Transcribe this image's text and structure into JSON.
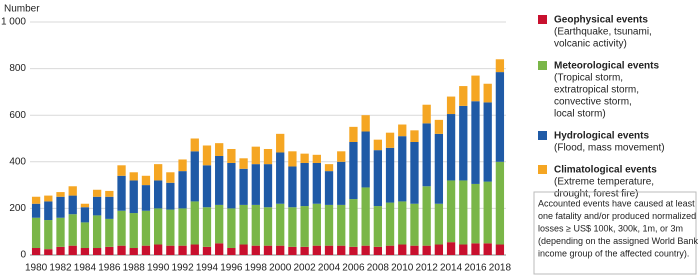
{
  "chart_data": {
    "type": "bar",
    "stacked": true,
    "y_axis_label": "Number",
    "categories": [
      1980,
      null,
      1982,
      null,
      1984,
      null,
      1986,
      null,
      1988,
      null,
      1990,
      null,
      1992,
      null,
      1994,
      null,
      1996,
      null,
      1998,
      null,
      2000,
      null,
      2002,
      null,
      2004,
      null,
      2006,
      null,
      2008,
      null,
      2010,
      null,
      2012,
      null,
      2014,
      null,
      2016,
      null,
      2018
    ],
    "series": [
      {
        "name": "Geophysical events",
        "description": [
          "(Earthquake, tsunami,",
          "volcanic activity)"
        ],
        "color": "#c8102e",
        "values": [
          30,
          25,
          35,
          40,
          30,
          30,
          35,
          40,
          30,
          40,
          45,
          40,
          40,
          45,
          35,
          50,
          30,
          45,
          40,
          40,
          40,
          35,
          35,
          40,
          40,
          40,
          35,
          40,
          35,
          40,
          45,
          40,
          40,
          45,
          55,
          45,
          50,
          50,
          45
        ]
      },
      {
        "name": "Meteorological events",
        "description": [
          "(Tropical storm,",
          "extratropical storm,",
          "convective storm,",
          "local storm)"
        ],
        "color": "#7ab648",
        "values": [
          130,
          125,
          125,
          135,
          110,
          140,
          120,
          150,
          150,
          150,
          155,
          155,
          160,
          185,
          170,
          165,
          170,
          170,
          175,
          165,
          180,
          170,
          175,
          180,
          175,
          175,
          205,
          250,
          175,
          185,
          185,
          180,
          255,
          175,
          265,
          275,
          255,
          265,
          355
        ]
      },
      {
        "name": "Hydrological events",
        "description": [
          "(Flood, mass movement)"
        ],
        "color": "#1f5aa6",
        "values": [
          60,
          80,
          90,
          80,
          65,
          80,
          95,
          150,
          140,
          110,
          120,
          115,
          160,
          215,
          180,
          210,
          195,
          155,
          175,
          185,
          220,
          175,
          185,
          175,
          145,
          185,
          245,
          240,
          240,
          235,
          280,
          265,
          270,
          300,
          285,
          320,
          355,
          340,
          385
        ]
      },
      {
        "name": "Climatological events",
        "description": [
          "(Extreme temperature,",
          "drought, forest fire)"
        ],
        "color": "#f5a623",
        "values": [
          30,
          25,
          20,
          40,
          15,
          30,
          25,
          45,
          35,
          40,
          70,
          45,
          50,
          55,
          85,
          55,
          60,
          45,
          75,
          65,
          80,
          65,
          40,
          35,
          30,
          45,
          65,
          70,
          45,
          65,
          50,
          50,
          80,
          60,
          75,
          85,
          110,
          80,
          55
        ]
      }
    ],
    "ylim": [
      0,
      1000
    ],
    "yticks": [
      0,
      200,
      400,
      600,
      800,
      {
        "value": 1000,
        "label": "1 000"
      }
    ],
    "grid": true,
    "note": [
      "Accounted events have caused at least",
      "one fatality and/or produced normalized",
      "losses ≥ US$ 100k, 300k, 1m, or 3m",
      "(depending on the assigned World Bank",
      "income group of the affected country)."
    ]
  }
}
